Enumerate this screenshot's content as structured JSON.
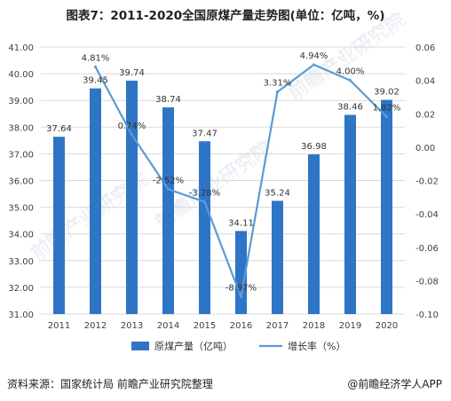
{
  "source_text": "资料来源：国家统计局 前瞻产业研究院整理",
  "brand_text": "@前瞻经济学人APP",
  "watermark_text": "前瞻产业研究院",
  "colors": {
    "bar": "#2e75c6",
    "line": "#5b9bd5",
    "grid": "#d9d9d9",
    "text": "#404040"
  },
  "chart_data": {
    "type": "bar",
    "title": "图表7：2011-2020全国原煤产量走势图(单位：亿吨，%)",
    "categories": [
      "2011",
      "2012",
      "2013",
      "2014",
      "2015",
      "2016",
      "2017",
      "2018",
      "2019",
      "2020"
    ],
    "series": [
      {
        "name": "原煤产量（亿吨）",
        "type": "bar",
        "axis": "left",
        "values": [
          37.64,
          39.45,
          39.74,
          38.74,
          37.47,
          34.11,
          35.24,
          36.98,
          38.46,
          39.02
        ],
        "labels": [
          "37.64",
          "39.45",
          "39.74",
          "38.74",
          "37.47",
          "34.11",
          "35.24",
          "36.98",
          "38.46",
          "39.02"
        ]
      },
      {
        "name": "增长率（%）",
        "type": "line",
        "axis": "right",
        "values": [
          null,
          0.0481,
          0.0074,
          -0.0252,
          -0.0328,
          -0.0897,
          0.0331,
          0.0494,
          0.04,
          0.0182
        ],
        "labels": [
          "",
          "4.81%",
          "0.74%",
          "-2.52%",
          "-3.28%",
          "-8.97%",
          "3.31%",
          "4.94%",
          "4.00%",
          "1.82%"
        ]
      }
    ],
    "ylim_left": [
      31,
      41
    ],
    "yticks_left": [
      "31.00",
      "32.00",
      "33.00",
      "34.00",
      "35.00",
      "36.00",
      "37.00",
      "38.00",
      "39.00",
      "40.00",
      "41.00"
    ],
    "ylim_right": [
      -0.1,
      0.06
    ],
    "yticks_right": [
      "-0.10",
      "-0.08",
      "-0.06",
      "-0.04",
      "-0.02",
      "0.00",
      "0.02",
      "0.04",
      "0.06"
    ],
    "grid": true,
    "legend": "bottom"
  }
}
